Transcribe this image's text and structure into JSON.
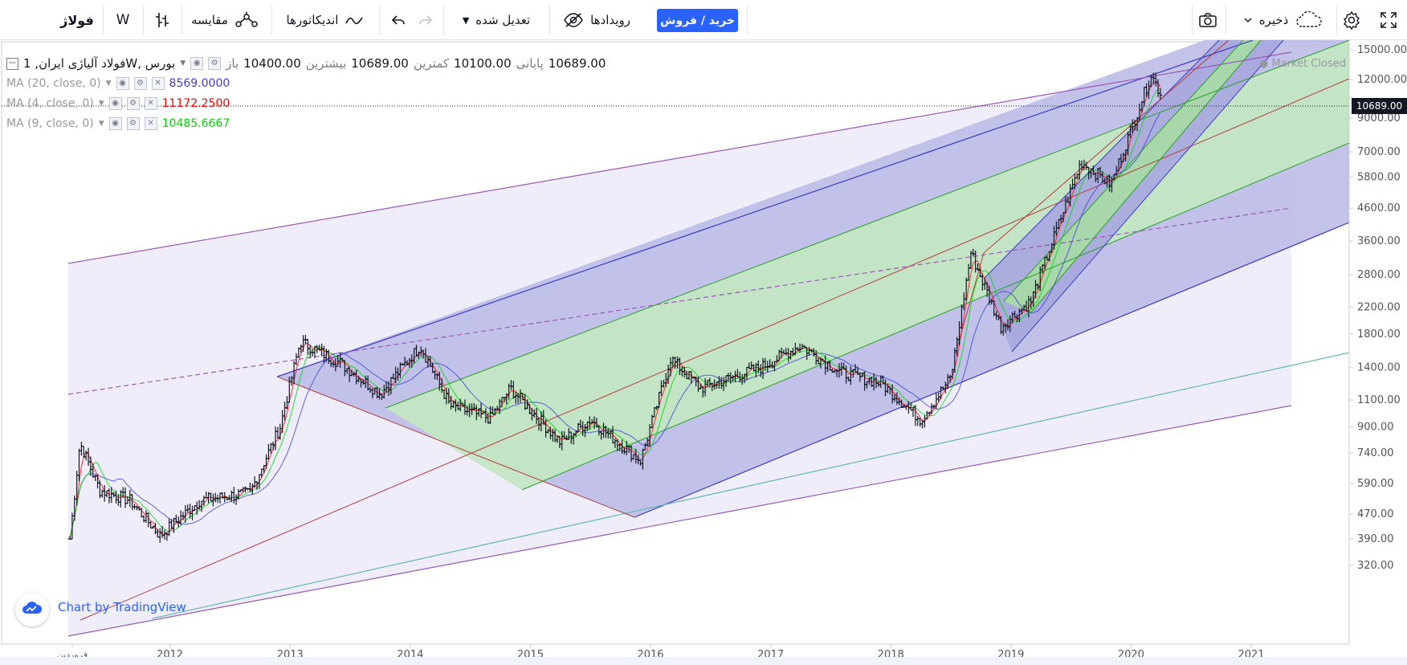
{
  "toolbar": {
    "symbol": "فولاژ",
    "interval": "W",
    "compare_label": "مقایسه",
    "indicators_label": "اندیکاتورها",
    "adjusted_label": "تعدیل شده",
    "events_label": "رویدادها",
    "buy_sell_label": "خرید / فروش",
    "save_label": "ذخیره",
    "icons": [
      "bar-style-icon",
      "compare-icon",
      "indicators-icon",
      "undo-icon",
      "redo-icon",
      "dropdown-caret-icon",
      "events-eye-icon",
      "camera-icon",
      "cloud-icon",
      "gear-icon",
      "fullscreen-icon"
    ]
  },
  "legend": {
    "title": "فولاد آلیاژی ایران, 1W, بورس",
    "open_label": "باز",
    "open_value": "10400.00",
    "high_label": "بیشترین",
    "high_value": "10689.00",
    "low_label": "کمترین",
    "low_value": "10100.00",
    "close_label": "پایانی",
    "close_value": "10689.00",
    "ma": [
      {
        "label": "MA (20, close, 0)",
        "value": "8569.0000",
        "color": "#3f3fd1"
      },
      {
        "label": "MA (4, close, 0)",
        "value": "11172.2500",
        "color": "#ff0000"
      },
      {
        "label": "MA (9, close, 0)",
        "value": "10485.6667",
        "color": "#00d600"
      }
    ]
  },
  "status": {
    "market": "Market Closed",
    "last_price": "10689.00"
  },
  "branding": {
    "text": "Chart by TradingView"
  },
  "chart_data": {
    "type": "candlestick",
    "scale": "log",
    "interval": "1W",
    "x_labels": [
      "فروردین",
      "2012",
      "2013",
      "2014",
      "2015",
      "2016",
      "2017",
      "2018",
      "2019",
      "2020",
      "2021"
    ],
    "y_ticks": [
      "15000.00",
      "12000.00",
      "9000.00",
      "7000.00",
      "5800.00",
      "4600.00",
      "3600.00",
      "2800.00",
      "2200.00",
      "1800.00",
      "1400.00",
      "1100.00",
      "900.00",
      "740.00",
      "590.00",
      "470.00",
      "390.00",
      "320.00"
    ],
    "ylim": [
      300,
      16000
    ],
    "last_close": 10689,
    "approx_price_path": [
      {
        "x": "2011-03",
        "y": 390
      },
      {
        "x": "2011-04",
        "y": 800
      },
      {
        "x": "2011-06",
        "y": 560
      },
      {
        "x": "2011-09",
        "y": 520
      },
      {
        "x": "2011-12",
        "y": 400
      },
      {
        "x": "2012-04",
        "y": 520
      },
      {
        "x": "2012-09",
        "y": 550
      },
      {
        "x": "2012-12",
        "y": 900
      },
      {
        "x": "2013-02",
        "y": 1700
      },
      {
        "x": "2013-06",
        "y": 1450
      },
      {
        "x": "2013-10",
        "y": 1150
      },
      {
        "x": "2014-02",
        "y": 1650
      },
      {
        "x": "2014-05",
        "y": 1050
      },
      {
        "x": "2014-09",
        "y": 960
      },
      {
        "x": "2014-11",
        "y": 1200
      },
      {
        "x": "2015-04",
        "y": 800
      },
      {
        "x": "2015-07",
        "y": 950
      },
      {
        "x": "2015-12",
        "y": 700
      },
      {
        "x": "2016-03",
        "y": 1500
      },
      {
        "x": "2016-06",
        "y": 1200
      },
      {
        "x": "2016-12",
        "y": 1400
      },
      {
        "x": "2017-04",
        "y": 1650
      },
      {
        "x": "2017-08",
        "y": 1350
      },
      {
        "x": "2017-12",
        "y": 1250
      },
      {
        "x": "2018-04",
        "y": 950
      },
      {
        "x": "2018-07",
        "y": 1300
      },
      {
        "x": "2018-09",
        "y": 3300
      },
      {
        "x": "2018-12",
        "y": 1900
      },
      {
        "x": "2019-03",
        "y": 2300
      },
      {
        "x": "2019-08",
        "y": 6500
      },
      {
        "x": "2019-11",
        "y": 5500
      },
      {
        "x": "2020-03",
        "y": 12500
      },
      {
        "x": "2020-04",
        "y": 10689
      }
    ],
    "moving_averages": [
      {
        "name": "MA (20, close, 0)",
        "color": "#3f3fd1"
      },
      {
        "name": "MA (4, close, 0)",
        "color": "#ff0000"
      },
      {
        "name": "MA (9, close, 0)",
        "color": "#00d600"
      }
    ]
  }
}
